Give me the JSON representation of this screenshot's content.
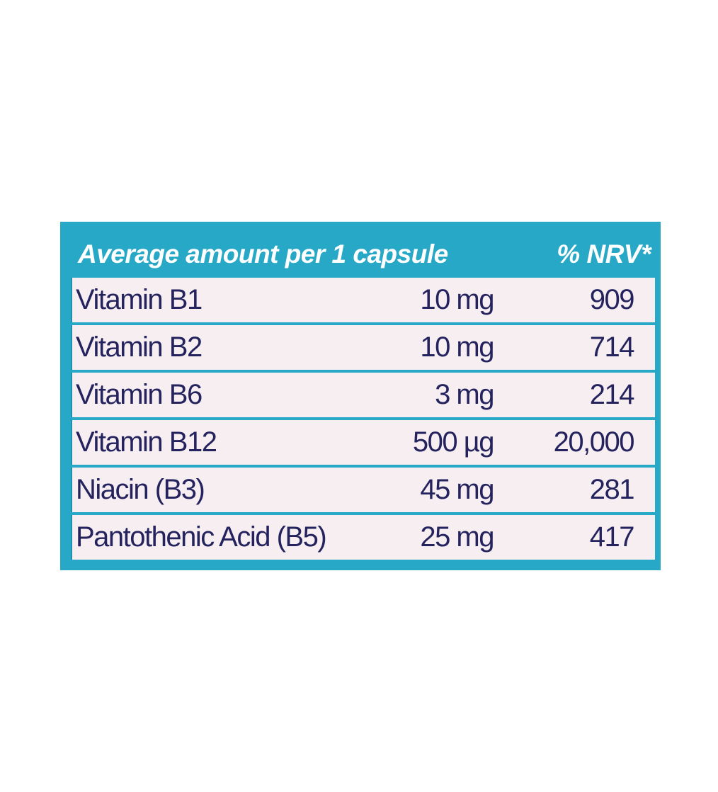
{
  "table": {
    "header": {
      "name": "Average amount per 1 capsule",
      "nrv": "% NRV*"
    },
    "rows": [
      {
        "name": "Vitamin B1",
        "amount": "10 mg",
        "nrv": "909"
      },
      {
        "name": "Vitamin B2",
        "amount": "10 mg",
        "nrv": "714"
      },
      {
        "name": "Vitamin B6",
        "amount": "3 mg",
        "nrv": "214"
      },
      {
        "name": "Vitamin B12",
        "amount": "500 µg",
        "nrv": "20,000"
      },
      {
        "name": "Niacin (B3)",
        "amount": "45 mg",
        "nrv": "281"
      },
      {
        "name": "Pantothenic Acid (B5)",
        "amount": "25 mg",
        "nrv": "417"
      }
    ]
  },
  "colors": {
    "frame": "#27a8c6",
    "row_background": "#f6eef1",
    "row_text": "#25235e",
    "header_text": "#ffffff"
  }
}
